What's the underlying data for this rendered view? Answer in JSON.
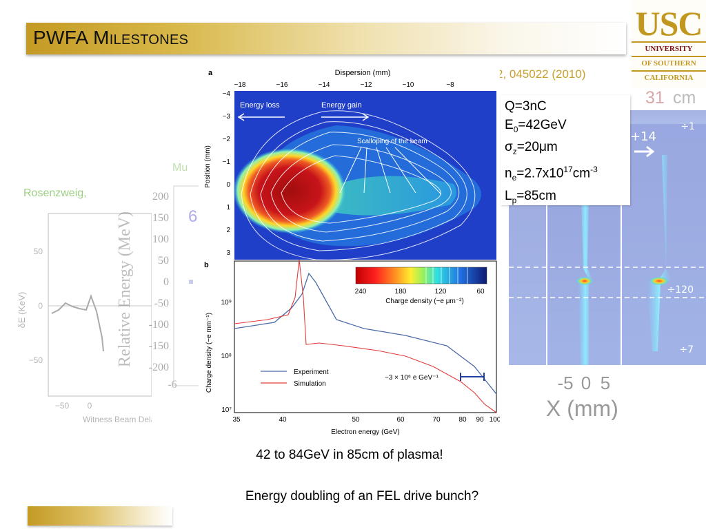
{
  "slide": {
    "title": "PWFA Milestones",
    "reference_partial": "2, 045022 (2010)",
    "green_text_1": "Mu",
    "green_text_2": "Rosenzweig,",
    "captions": [
      "42 to 84GeV in 85cm of plasma!",
      "Energy doubling of an FEL drive bunch?"
    ]
  },
  "logo": {
    "letters": "USC",
    "line1": "UNIVERSITY",
    "line2": "OF SOUTHERN",
    "line3": "CALIFORNIA"
  },
  "parameters": {
    "Q": "Q=3nC",
    "E0_prefix": "E",
    "E0_sub": "0",
    "E0_value": "=42GeV",
    "sigma_prefix": "σ",
    "sigma_sub": "z",
    "sigma_value": "=20μm",
    "ne_prefix": "n",
    "ne_sub": "e",
    "ne_mid": "=2.7x10",
    "ne_sup": "17",
    "ne_unit": "cm",
    "ne_unit_sup": "-3",
    "Lp_prefix": "L",
    "Lp_sub": "p",
    "Lp_value": "=85cm"
  },
  "right_panel": {
    "cm_value": "31",
    "cm_unit": "cm",
    "label_plus14": "+14",
    "div_1": "÷1",
    "div_120": "÷120",
    "div_7": "÷7",
    "x_ticks": [
      "-5",
      "0",
      "5"
    ],
    "x_label": "X (mm)"
  },
  "left_faded_plot": {
    "y_ticks": [
      "50",
      "0",
      "−50"
    ],
    "y_label": "δE (KeV)",
    "x_ticks": [
      "−50",
      "0"
    ],
    "x_label": "Witness Beam Delay (ps"
  },
  "mid_faded_plot": {
    "y_ticks": [
      "200",
      "150",
      "100",
      "50",
      "0",
      "-50",
      "-100",
      "-150",
      "-200"
    ],
    "y_label": "Relative Energy (MeV)",
    "x_tick": "-6",
    "fragment_1": "6"
  },
  "figure": {
    "panel_a": {
      "letter": "a",
      "top_axis_label": "Dispersion (mm)",
      "top_ticks": [
        "−18",
        "−16",
        "−14",
        "−12",
        "−10",
        "−8"
      ],
      "y_label": "Position (mm)",
      "y_ticks": [
        "−4",
        "−3",
        "−2",
        "−1",
        "0",
        "1",
        "2",
        "3"
      ],
      "annotation_loss": "Energy loss",
      "annotation_gain": "Energy gain",
      "annotation_scallop": "Scalloping of the beam"
    },
    "panel_b": {
      "letter": "b",
      "y_label": "Charge density (−e mm⁻¹)",
      "y_ticks": [
        "10⁹",
        "10⁸",
        "10⁷"
      ],
      "x_label": "Electron energy (GeV)",
      "x_ticks": [
        "35",
        "40",
        "50",
        "60",
        "70",
        "80",
        "90",
        "100"
      ],
      "legend": [
        "Experiment",
        "Simulation"
      ],
      "errorbar_label": "−3 × 10⁶ e GeV⁻¹",
      "colorbar_ticks": [
        "240",
        "180",
        "120",
        "60"
      ],
      "colorbar_label": "Charge density (−e μm⁻²)"
    },
    "colors": {
      "experiment": "#4a6aa8",
      "simulation": "#e03b3b"
    }
  }
}
